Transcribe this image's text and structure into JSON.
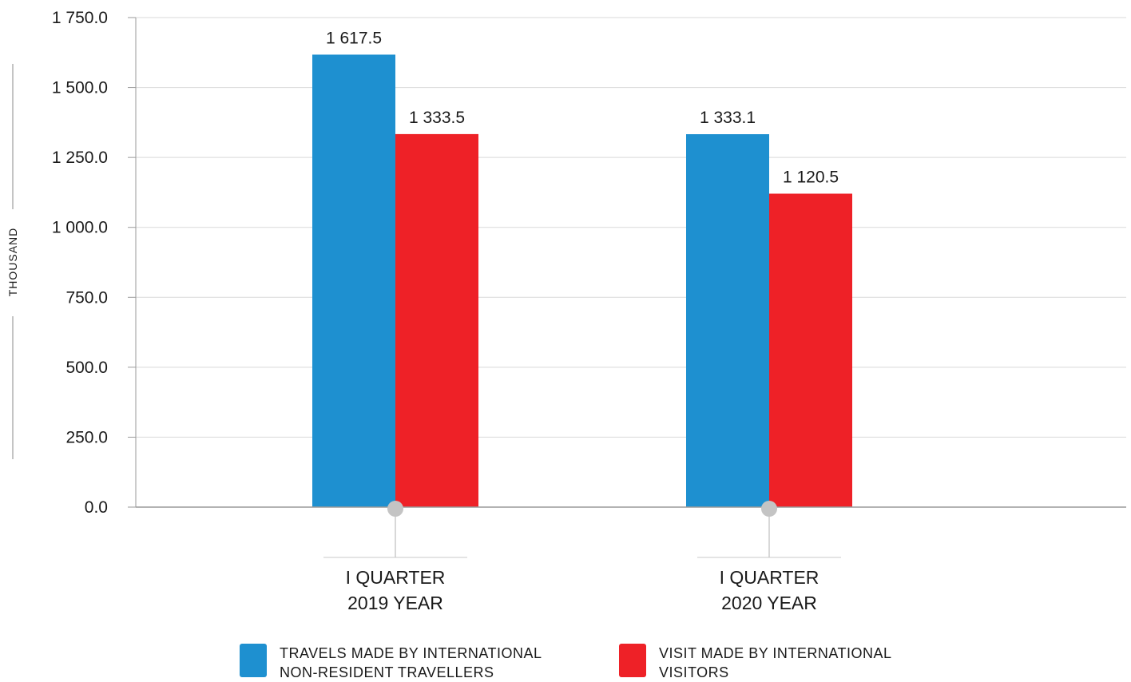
{
  "chart_data": {
    "type": "bar",
    "categories": [
      [
        "I QUARTER",
        "2019 YEAR"
      ],
      [
        "I QUARTER",
        "2020 YEAR"
      ]
    ],
    "series": [
      {
        "name_lines": [
          "TRAVELS MADE BY INTERNATIONAL",
          "NON-RESIDENT TRAVELLERS"
        ],
        "color": "#1e90d0",
        "values": [
          1617.5,
          1333.1
        ]
      },
      {
        "name_lines": [
          "VISIT MADE BY INTERNATIONAL",
          "VISITORS"
        ],
        "color": "#ee2127",
        "values": [
          1333.5,
          1120.5
        ]
      }
    ],
    "data_labels": [
      [
        "1 617.5",
        "1 333.1"
      ],
      [
        "1 333.5",
        "1 120.5"
      ]
    ],
    "ylabel": "THOUSAND",
    "ylim": [
      0,
      1750
    ],
    "yticks": [
      0,
      250,
      500,
      750,
      1000,
      1250,
      1500,
      1750
    ],
    "ytick_labels": [
      "0.0",
      "250.0",
      "500.0",
      "750.0",
      "1 000.0",
      "1 250.0",
      "1 500.0",
      "1 750.0"
    ],
    "grid": true,
    "legend_position": "bottom"
  }
}
